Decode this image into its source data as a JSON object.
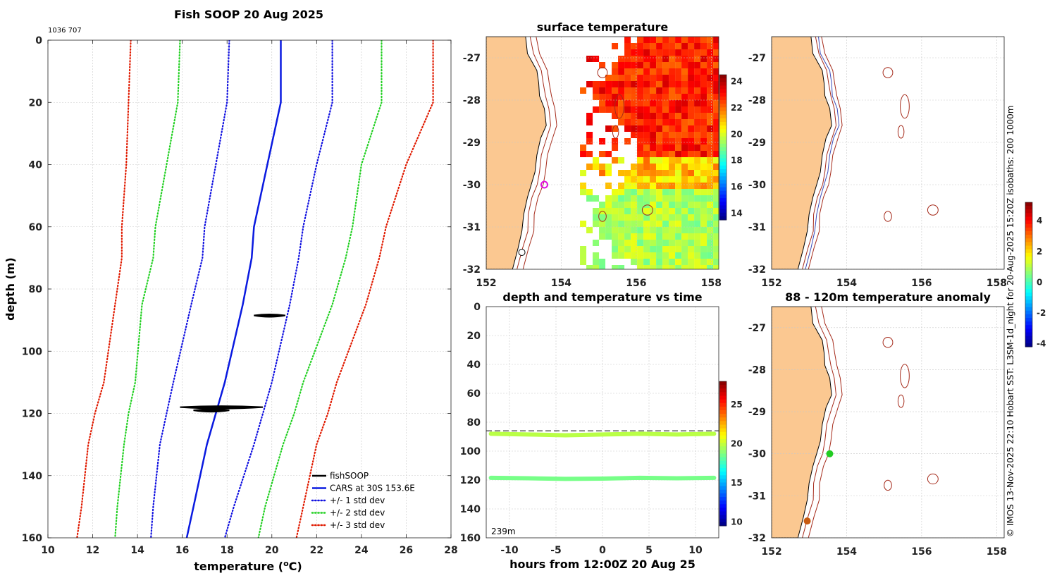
{
  "colors": {
    "land": "#fbc891",
    "isobath": "#a52a1a",
    "cars": "#0a1ae0",
    "std1": "#1010e0",
    "std2": "#22d022",
    "std3": "#e01a00",
    "fish": "#000000",
    "marker_magenta": "#e010e0",
    "marker_green": "#22cc22",
    "marker_orange": "#c85a10",
    "blue_isobath": "#3a4ab8"
  },
  "chart_data": [
    {
      "id": "profile",
      "type": "line",
      "title": "Fish SOOP 20 Aug 2025",
      "id_text": "1036 707",
      "xlabel": "temperature (",
      "xlabel_sup": "o",
      "xlabel_end": "C)",
      "ylabel": "depth (m)",
      "xlim": [
        10,
        28
      ],
      "ylim": [
        160,
        0
      ],
      "xticks": [
        10,
        12,
        14,
        16,
        18,
        20,
        22,
        24,
        26,
        28
      ],
      "yticks": [
        0,
        20,
        40,
        60,
        80,
        100,
        120,
        140,
        160
      ],
      "depths": [
        0,
        20,
        40,
        60,
        70,
        85,
        110,
        120,
        130,
        150,
        160
      ],
      "series": [
        {
          "name": "CARS at 30S 153.6E",
          "style": "solid",
          "color_key": "cars",
          "mirror": false,
          "values": [
            20.4,
            20.4,
            19.8,
            19.2,
            19.1,
            18.7,
            17.9,
            17.5,
            17.1,
            16.5,
            16.2
          ]
        },
        {
          "name": "+/- 1 std dev",
          "style": "dot",
          "color_key": "std1",
          "mirror": false,
          "values": [
            18.1,
            18.0,
            17.5,
            17.0,
            16.9,
            16.4,
            15.6,
            15.3,
            15.0,
            14.7,
            14.6
          ]
        },
        {
          "name": "+/- 1 std dev",
          "style": "dot",
          "color_key": "std1",
          "mirror": true,
          "values": [
            22.7,
            22.7,
            22.0,
            21.4,
            21.2,
            20.8,
            20.0,
            19.6,
            19.2,
            18.3,
            17.9
          ]
        },
        {
          "name": "+/- 2 std dev",
          "style": "dot",
          "color_key": "std2",
          "mirror": false,
          "values": [
            15.9,
            15.8,
            15.3,
            14.8,
            14.7,
            14.2,
            13.9,
            13.6,
            13.4,
            13.1,
            13.0
          ]
        },
        {
          "name": "+/- 2 std dev",
          "style": "dot",
          "color_key": "std2",
          "mirror": true,
          "values": [
            24.9,
            24.9,
            24.0,
            23.6,
            23.3,
            22.7,
            21.4,
            21.0,
            20.5,
            19.7,
            19.4
          ]
        },
        {
          "name": "+/- 3 std dev",
          "style": "dot",
          "color_key": "std3",
          "mirror": false,
          "values": [
            13.7,
            13.6,
            13.5,
            13.3,
            13.3,
            13.0,
            12.5,
            12.1,
            11.8,
            11.5,
            11.3
          ]
        },
        {
          "name": "+/- 3 std dev",
          "style": "dot",
          "color_key": "std3",
          "mirror": true,
          "values": [
            27.2,
            27.2,
            26.0,
            25.1,
            24.8,
            24.2,
            22.9,
            22.5,
            22.0,
            21.4,
            21.1
          ]
        }
      ],
      "fishsoop": [
        {
          "depth": 88.5,
          "t_min": 19.2,
          "t_max": 20.6
        },
        {
          "depth": 118.0,
          "t_min": 15.9,
          "t_max": 19.6
        },
        {
          "depth": 119.0,
          "t_min": 16.5,
          "t_max": 18.1
        }
      ],
      "legend": [
        {
          "label": "fishSOOP",
          "style": "solid",
          "color_key": "fish"
        },
        {
          "label": "CARS at 30S 153.6E",
          "style": "solid",
          "color_key": "cars"
        },
        {
          "label": "+/- 1 std dev",
          "style": "dot",
          "color_key": "std1"
        },
        {
          "label": "+/- 2 std dev",
          "style": "dot",
          "color_key": "std2"
        },
        {
          "label": "+/- 3 std dev",
          "style": "dot",
          "color_key": "std3"
        }
      ],
      "legend_position": "bottom-right"
    },
    {
      "id": "sst_map",
      "type": "heatmap",
      "title": "surface temperature",
      "xlim": [
        152,
        158.2
      ],
      "ylim": [
        -32,
        -26.5
      ],
      "xticks": [
        152,
        154,
        156,
        158
      ],
      "yticks": [
        -27,
        -28,
        -29,
        -30,
        -31,
        -32
      ],
      "colorbar": {
        "min": 13.5,
        "max": 24.5,
        "ticks": [
          24,
          22,
          20,
          18,
          16,
          14
        ]
      },
      "sst_region_lon_from": 154.5,
      "marker": {
        "lon": 153.55,
        "lat": -30.0,
        "color_key": "marker_magenta"
      },
      "open_marker": {
        "lon": 152.95,
        "lat": -31.6
      }
    },
    {
      "id": "bathy_map",
      "type": "map",
      "xlim": [
        152,
        158.2
      ],
      "ylim": [
        -32,
        -26.5
      ],
      "xticks": [
        152,
        154,
        156,
        158
      ],
      "yticks": [
        -27,
        -28,
        -29,
        -30,
        -31,
        -32
      ]
    },
    {
      "id": "depth_time",
      "type": "scatter",
      "title": "depth and temperature vs time",
      "xlabel": "hours from 12:00Z 20 Aug 25",
      "xlim": [
        -12.5,
        12.5
      ],
      "ylim": [
        160,
        0
      ],
      "xticks": [
        -10,
        -5,
        0,
        5,
        10
      ],
      "yticks": [
        0,
        20,
        40,
        60,
        80,
        100,
        120,
        140,
        160
      ],
      "dashed_depth": 86,
      "bottom_label": "239m",
      "colorbar": {
        "min": 9.5,
        "max": 28,
        "ticks": [
          25,
          20,
          15,
          10
        ]
      },
      "tracks": [
        {
          "hours": [
            -12,
            -8,
            -4,
            0,
            4,
            8,
            12
          ],
          "depths": [
            88,
            88.5,
            89,
            88.5,
            88,
            88.5,
            88
          ],
          "temp": 19.8
        },
        {
          "hours": [
            -12,
            -8,
            -4,
            0,
            4,
            8,
            12
          ],
          "depths": [
            118.5,
            118.8,
            119.2,
            119,
            118.5,
            118.8,
            118.5
          ],
          "temp": 18.6
        }
      ]
    },
    {
      "id": "anomaly_map",
      "type": "map",
      "title": "88 - 120m temperature anomaly",
      "xlim": [
        152,
        158.2
      ],
      "ylim": [
        -32,
        -26.5
      ],
      "xticks": [
        152,
        154,
        156,
        158
      ],
      "yticks": [
        -27,
        -28,
        -29,
        -30,
        -31,
        -32
      ],
      "colorbar": {
        "min": -4.2,
        "max": 5.2,
        "ticks": [
          4,
          2,
          0,
          -2,
          -4
        ]
      },
      "markers": [
        {
          "lon": 153.55,
          "lat": -30.0,
          "color_key": "marker_green"
        },
        {
          "lon": 152.95,
          "lat": -31.6,
          "color_key": "marker_orange"
        }
      ]
    }
  ],
  "credit": "© IMOS 13-Nov-2025 22:10 Hobart SST: L3SM-1d_night for 20-Aug-2025 15:20Z isobaths: 200  1000m"
}
